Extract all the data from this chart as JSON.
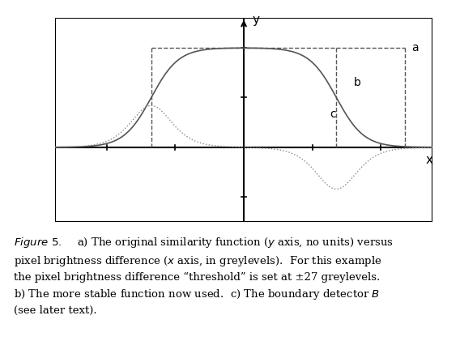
{
  "threshold": 27,
  "xlim": [
    -55,
    55
  ],
  "ylim": [
    -0.75,
    1.3
  ],
  "xticks": [
    -40,
    -20,
    20,
    40
  ],
  "yticks": [
    -0.5,
    0.5,
    1
  ],
  "xlabel": "x",
  "ylabel": "y",
  "background_color": "#ffffff",
  "box_color": "#000000",
  "label_a": "a",
  "label_b": "b",
  "label_c": "c",
  "fig_caption": "Figure 5.    a) The original similarity function (y axis, no units) versus\npixel brightness difference (x axis, in greylevels).  For this example\nthe pixel brightness difference “threshold” is set at ±27 greylevels.\nb) The more stable function now used.  c) The boundary detector B\n(see later text).",
  "curve_b_sigma": 10,
  "curve_c_sigma": 5
}
